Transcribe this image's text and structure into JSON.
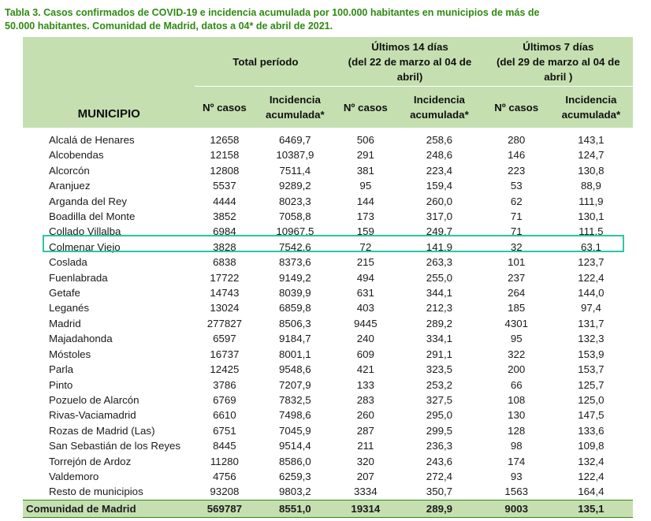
{
  "caption": {
    "line1": "Tabla 3. Casos confirmados de COVID-19 e incidencia acumulada por 100.000 habitantes en municipios de más de",
    "line2": "50.000 habitantes. Comunidad de Madrid, datos a 04* de abril de 2021."
  },
  "header": {
    "municipio": "MUNICIPIO",
    "total": "Total período",
    "last14_l1": "Últimos 14 días",
    "last14_l2": "(del 22 de marzo al 04 de",
    "last14_l3": "abril)",
    "last7_l1": "Últimos 7 días",
    "last7_l2": "(del 29 de marzo al 04 de",
    "last7_l3": "abril )",
    "ncasos": "Nº casos",
    "incid_l1": "Incidencia",
    "incid_l2": "acumulada*"
  },
  "rows": [
    [
      "Alcalá de Henares",
      "12658",
      "6469,7",
      "506",
      "258,6",
      "280",
      "143,1"
    ],
    [
      "Alcobendas",
      "12158",
      "10387,9",
      "291",
      "248,6",
      "146",
      "124,7"
    ],
    [
      "Alcorcón",
      "12808",
      "7511,4",
      "381",
      "223,4",
      "223",
      "130,8"
    ],
    [
      "Aranjuez",
      "5537",
      "9289,2",
      "95",
      "159,4",
      "53",
      "88,9"
    ],
    [
      "Arganda del Rey",
      "4444",
      "8023,3",
      "144",
      "260,0",
      "62",
      "111,9"
    ],
    [
      "Boadilla del Monte",
      "3852",
      "7058,8",
      "173",
      "317,0",
      "71",
      "130,1"
    ],
    [
      "Collado Villalba",
      "6984",
      "10967,5",
      "159",
      "249,7",
      "71",
      "111,5"
    ],
    [
      "Colmenar Viejo",
      "3828",
      "7542,6",
      "72",
      "141,9",
      "32",
      "63,1"
    ],
    [
      "Coslada",
      "6838",
      "8373,6",
      "215",
      "263,3",
      "101",
      "123,7"
    ],
    [
      "Fuenlabrada",
      "17722",
      "9149,2",
      "494",
      "255,0",
      "237",
      "122,4"
    ],
    [
      "Getafe",
      "14743",
      "8039,9",
      "631",
      "344,1",
      "264",
      "144,0"
    ],
    [
      "Leganés",
      "13024",
      "6859,8",
      "403",
      "212,3",
      "185",
      "97,4"
    ],
    [
      "Madrid",
      "277827",
      "8506,3",
      "9445",
      "289,2",
      "4301",
      "131,7"
    ],
    [
      "Majadahonda",
      "6597",
      "9184,7",
      "240",
      "334,1",
      "95",
      "132,3"
    ],
    [
      "Móstoles",
      "16737",
      "8001,1",
      "609",
      "291,1",
      "322",
      "153,9"
    ],
    [
      "Parla",
      "12425",
      "9548,6",
      "421",
      "323,5",
      "200",
      "153,7"
    ],
    [
      "Pinto",
      "3786",
      "7207,9",
      "133",
      "253,2",
      "66",
      "125,7"
    ],
    [
      "Pozuelo de Alarcón",
      "6769",
      "7832,5",
      "283",
      "327,5",
      "108",
      "125,0"
    ],
    [
      "Rivas-Vaciamadrid",
      "6610",
      "7498,6",
      "260",
      "295,0",
      "130",
      "147,5"
    ],
    [
      "Rozas de Madrid (Las)",
      "6751",
      "7045,9",
      "287",
      "299,5",
      "128",
      "133,6"
    ],
    [
      "San Sebastián de los Reyes",
      "8445",
      "9514,4",
      "211",
      "236,3",
      "98",
      "109,8"
    ],
    [
      "Torrejón de Ardoz",
      "11280",
      "8586,0",
      "320",
      "243,6",
      "174",
      "132,4"
    ],
    [
      "Valdemoro",
      "4756",
      "6259,3",
      "207",
      "272,4",
      "93",
      "122,4"
    ],
    [
      "Resto de municipios",
      "93208",
      "9803,2",
      "3334",
      "350,7",
      "1563",
      "164,4"
    ]
  ],
  "total_row": [
    "Comunidad de Madrid",
    "569787",
    "8551,0",
    "19314",
    "289,9",
    "9003",
    "135,1"
  ],
  "colors": {
    "caption": "#2f8a12",
    "header_bg": "#c5dfb1",
    "highlight": "#2ec4a6"
  }
}
